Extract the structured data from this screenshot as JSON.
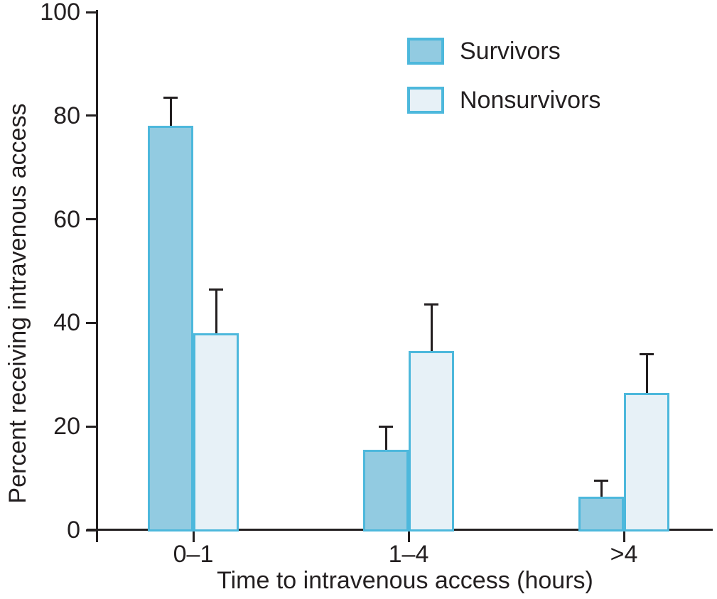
{
  "chart_data": {
    "type": "bar",
    "title": "",
    "categories": [
      "0–1",
      "1–4",
      ">4"
    ],
    "series": [
      {
        "name": "Survivors",
        "values": [
          78,
          15.5,
          6.5
        ],
        "error_top": [
          83.5,
          20,
          9.5
        ],
        "fill": "#92CBE1",
        "border": "#4DB8DC"
      },
      {
        "name": "Nonsurvivors",
        "values": [
          38,
          34.5,
          26.5
        ],
        "error_top": [
          46.5,
          43.5,
          34
        ],
        "fill": "#E7F1F7",
        "border": "#4DB8DC"
      }
    ],
    "xlabel": "Time to intravenous access (hours)",
    "ylabel": "Percent receiving intravenous access",
    "ylim": [
      0,
      100
    ],
    "yticks": [
      0,
      20,
      40,
      60,
      80,
      100
    ],
    "grid": false,
    "error_bars": true,
    "legend_position": "top-right",
    "axis_color": "#231F20"
  }
}
